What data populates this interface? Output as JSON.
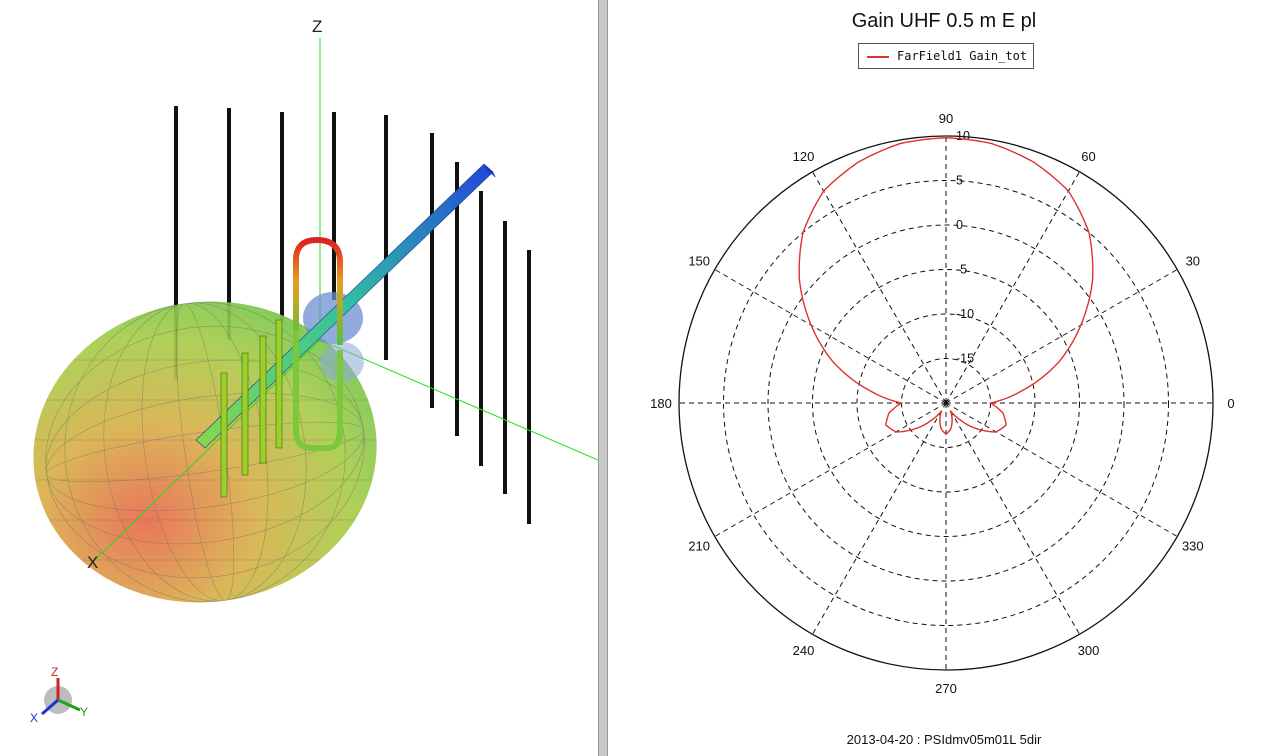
{
  "viewer3d": {
    "axis_z": "Z",
    "axis_x": "X",
    "triad": {
      "z": "Z",
      "y": "Y",
      "x": "X"
    }
  },
  "plot": {
    "title": "Gain UHF 0.5 m E pl",
    "legend": "FarField1 Gain_tot",
    "footer": "2013-04-20 : PSIdmv05m01L 5dir"
  },
  "chart_data": {
    "type": "polar",
    "title": "Gain UHF 0.5 m E pl",
    "radial_ticks": [
      "10",
      "5",
      "0",
      "-5",
      "-10",
      "-15"
    ],
    "radial_range": [
      -20,
      10
    ],
    "angle_labels": [
      "0",
      "30",
      "60",
      "90",
      "120",
      "150",
      "180",
      "210",
      "240",
      "270",
      "300",
      "330"
    ],
    "grid": true,
    "legend_position": "top-center",
    "series": [
      {
        "name": "FarField1 Gain_tot",
        "color": "#e03030",
        "angles_deg": [
          0,
          10,
          20,
          30,
          40,
          50,
          60,
          70,
          80,
          90,
          100,
          110,
          120,
          130,
          140,
          150,
          160,
          170,
          180,
          190,
          200,
          210,
          220,
          230,
          240,
          250,
          260,
          270,
          280,
          290,
          300,
          310,
          320,
          330,
          340,
          350
        ],
        "gain_db": [
          -15,
          -11,
          -6.5,
          -2.5,
          1.5,
          5,
          7.5,
          8.8,
          9.6,
          9.8,
          9.6,
          8.8,
          7.5,
          5,
          1.5,
          -2.5,
          -6.5,
          -11,
          -15,
          -13.5,
          -12.8,
          -13.5,
          -15.5,
          -17.5,
          -19,
          -18,
          -17,
          -16.5,
          -17,
          -18,
          -19,
          -17.5,
          -15.5,
          -13.5,
          -12.8,
          -13.5
        ]
      }
    ]
  }
}
